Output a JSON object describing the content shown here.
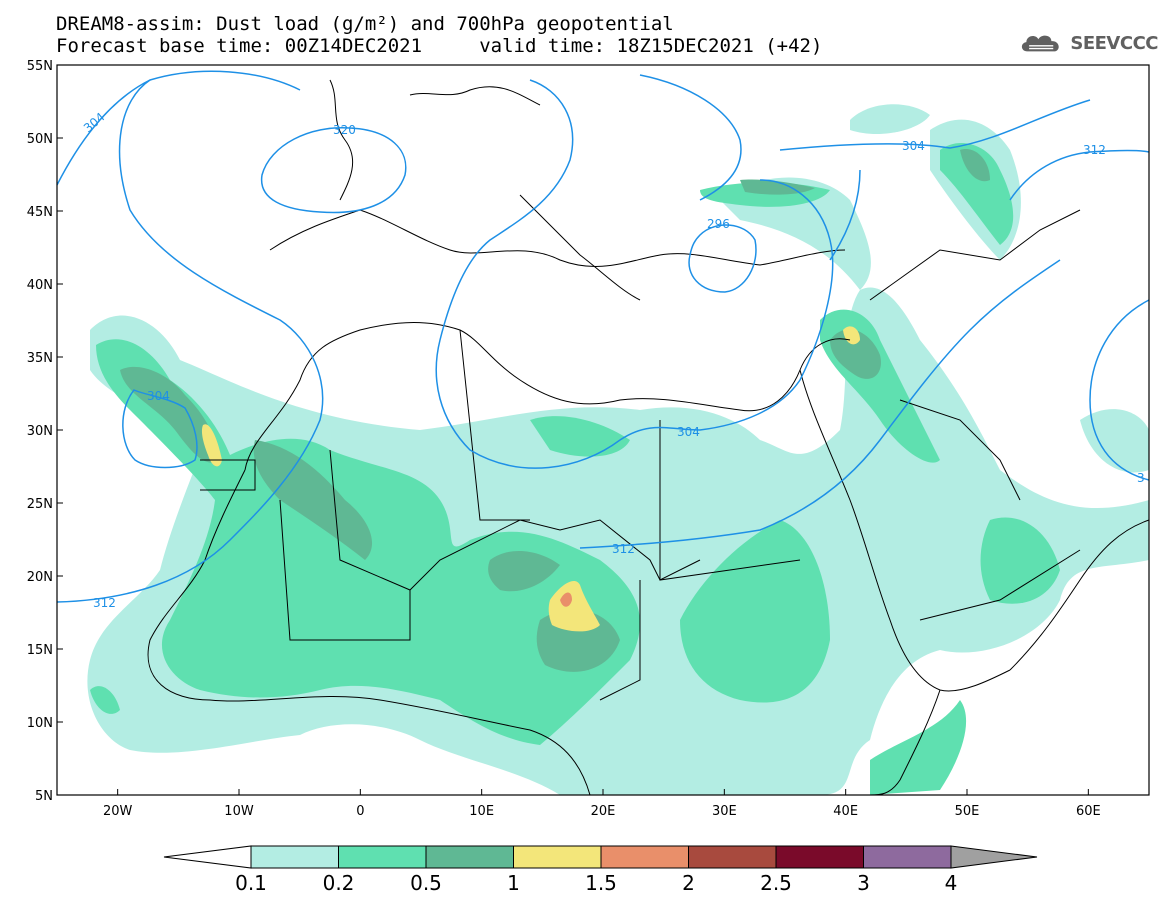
{
  "title": {
    "line1": "DREAM8-assim: Dust load (g/m²) and 700hPa geopotential",
    "line2": "Forecast base time: 00Z14DEC2021     valid time: 18Z15DEC2021 (+42)"
  },
  "logo": {
    "icon": "cloud-icon",
    "text": "SEEVCCC",
    "color": "#606060"
  },
  "map": {
    "lon_range": [
      -25,
      65
    ],
    "lat_range": [
      5,
      55
    ],
    "lon_ticks": [
      {
        "value": -20,
        "label": "20W"
      },
      {
        "value": -10,
        "label": "10W"
      },
      {
        "value": 0,
        "label": "0"
      },
      {
        "value": 10,
        "label": "10E"
      },
      {
        "value": 20,
        "label": "20E"
      },
      {
        "value": 30,
        "label": "30E"
      },
      {
        "value": 40,
        "label": "40E"
      },
      {
        "value": 50,
        "label": "50E"
      },
      {
        "value": 60,
        "label": "60E"
      }
    ],
    "lat_ticks": [
      {
        "value": 55,
        "label": "55N"
      },
      {
        "value": 50,
        "label": "50N"
      },
      {
        "value": 45,
        "label": "45N"
      },
      {
        "value": 40,
        "label": "40N"
      },
      {
        "value": 35,
        "label": "35N"
      },
      {
        "value": 30,
        "label": "30N"
      },
      {
        "value": 25,
        "label": "25N"
      },
      {
        "value": 20,
        "label": "20N"
      },
      {
        "value": 15,
        "label": "15N"
      },
      {
        "value": 10,
        "label": "10N"
      },
      {
        "value": 5,
        "label": "5N"
      }
    ],
    "contour_color": "#1e90e6",
    "contour_labels": [
      "304",
      "320",
      "304",
      "312",
      "296",
      "304",
      "304",
      "312",
      "312",
      "3"
    ]
  },
  "legend": {
    "labels": [
      "0.1",
      "0.2",
      "0.5",
      "1",
      "1.5",
      "2",
      "2.5",
      "3",
      "4"
    ],
    "colors": [
      "#b3ede3",
      "#5fe0b0",
      "#5fb894",
      "#f3e67a",
      "#e98f6a",
      "#a84a3e",
      "#7a0a2a",
      "#8e6a9e"
    ],
    "under_color": "#ffffff",
    "over_color": "#a0a0a0"
  }
}
